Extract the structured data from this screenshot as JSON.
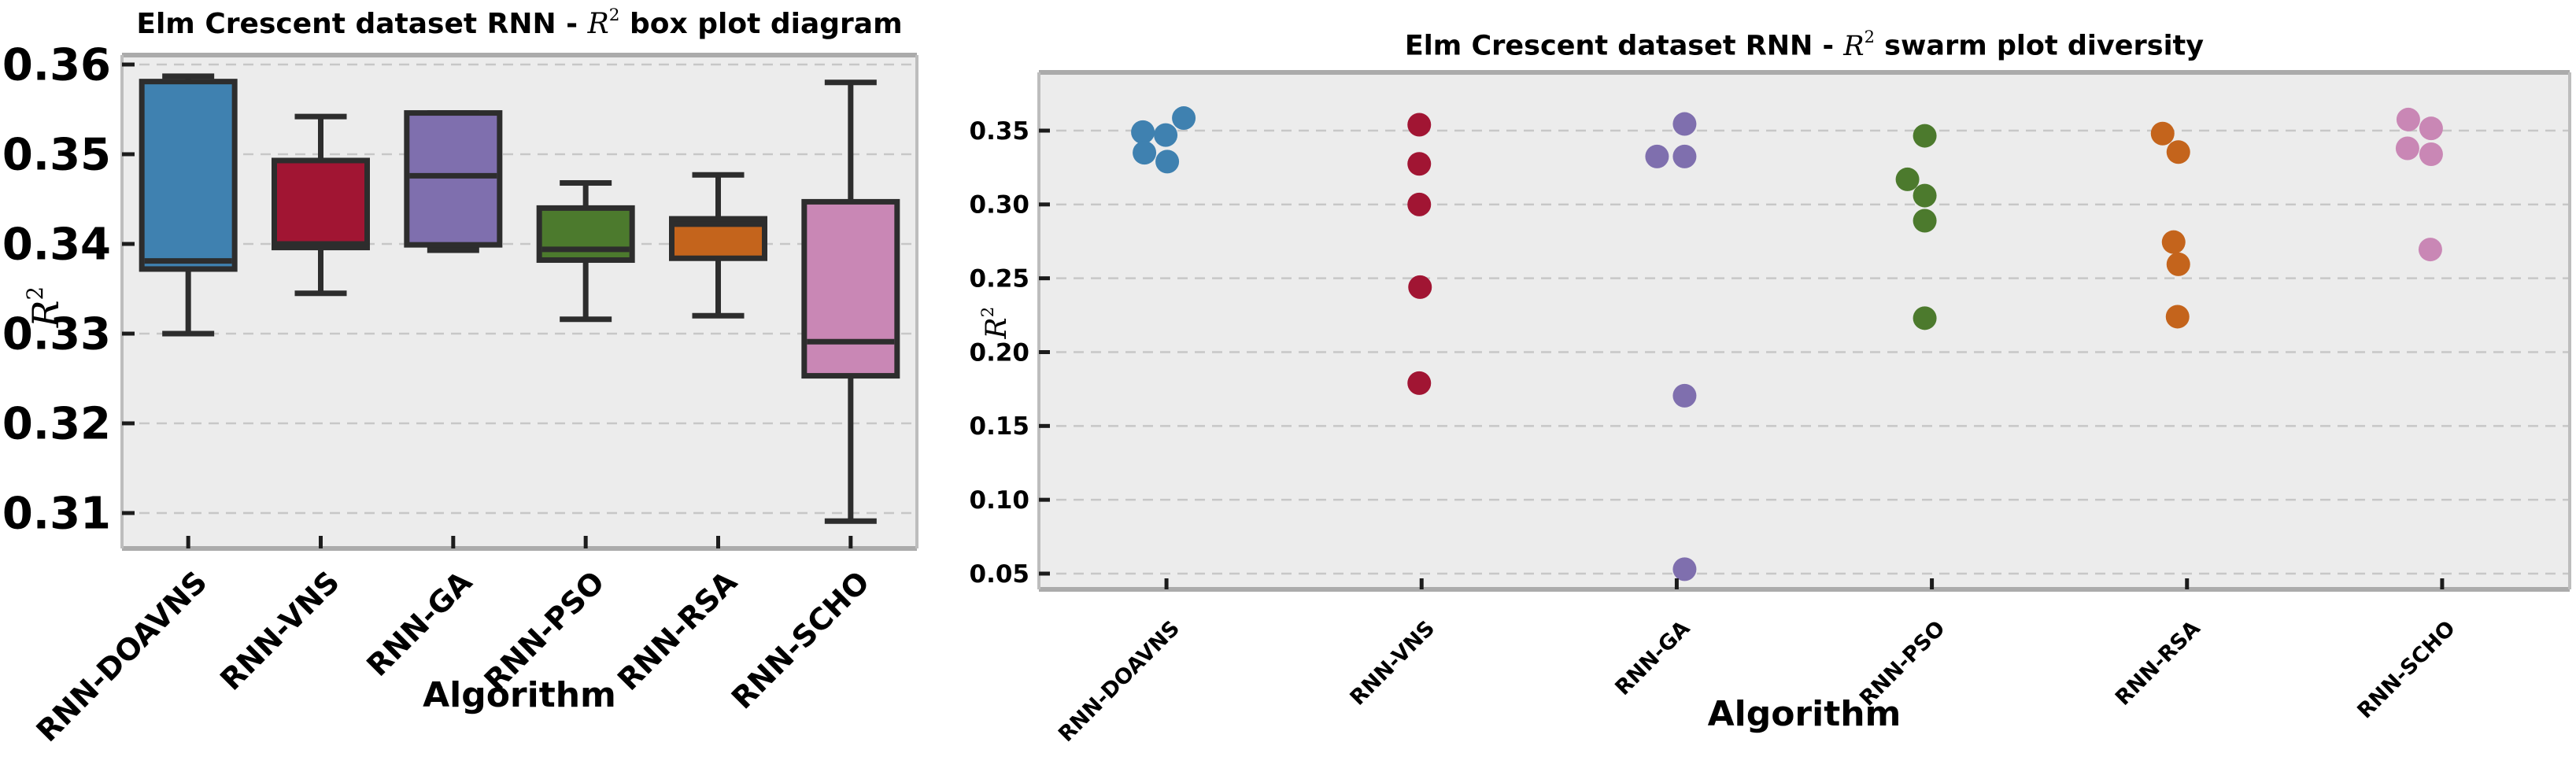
{
  "style": {
    "background": "#ffffff",
    "plot_bg": "#ececec",
    "grid_color": "#c7c7c7",
    "spine_color": "#ababab",
    "side_spine_color": "#bdbdbd",
    "tick_color": "#1c1c1c",
    "text_color": "#000000",
    "box_edge": "#2d2d2d",
    "colors": [
      "#3f81b0",
      "#a11533",
      "#7f6fae",
      "#4c7a2d",
      "#c4641c",
      "#c987b5"
    ]
  },
  "chart_data": [
    {
      "type": "box",
      "title": "Elm Crescent dataset RNN -  R2  box plot diagram",
      "title_parts": {
        "prefix": "Elm Crescent dataset RNN - ",
        "r": "R",
        "exp": "2",
        "suffix": " box plot diagram"
      },
      "xlabel": "Algorithm",
      "ylabel": "R^2",
      "ylabel_parts": {
        "r": "R",
        "exp": "2"
      },
      "categories": [
        "RNN-DOAVNS",
        "RNN-VNS",
        "RNN-GA",
        "RNN-PSO",
        "RNN-RSA",
        "RNN-SCHO"
      ],
      "yticks": [
        0.31,
        0.32,
        0.33,
        0.34,
        0.35,
        0.36
      ],
      "ytick_labels": [
        "0.31",
        "0.32",
        "0.33",
        "0.34",
        "0.35",
        "0.36"
      ],
      "ylim": [
        0.3062,
        0.3609
      ],
      "grid": true,
      "legend": false,
      "stats": [
        {
          "label": "RNN-DOAVNS",
          "whislo": 0.33,
          "q1": 0.3372,
          "med": 0.3381,
          "q3": 0.3581,
          "whishi": 0.3587
        },
        {
          "label": "RNN-VNS",
          "whislo": 0.3345,
          "q1": 0.3396,
          "med": 0.34,
          "q3": 0.3493,
          "whishi": 0.3542
        },
        {
          "label": "RNN-GA",
          "whislo": 0.3393,
          "q1": 0.3399,
          "med": 0.3476,
          "q3": 0.3546,
          "whishi": 0.3546
        },
        {
          "label": "RNN-PSO",
          "whislo": 0.3316,
          "q1": 0.3382,
          "med": 0.3394,
          "q3": 0.344,
          "whishi": 0.3468
        },
        {
          "label": "RNN-RSA",
          "whislo": 0.332,
          "q1": 0.3384,
          "med": 0.3422,
          "q3": 0.3428,
          "whishi": 0.3477
        },
        {
          "label": "RNN-SCHO",
          "whislo": 0.3091,
          "q1": 0.3253,
          "med": 0.3291,
          "q3": 0.3447,
          "whishi": 0.358
        }
      ]
    },
    {
      "type": "scatter",
      "variant": "swarm",
      "title": "Elm Crescent dataset RNN -  R2  swarm plot diversity",
      "title_parts": {
        "prefix": "Elm Crescent dataset RNN - ",
        "r": "R",
        "exp": "2",
        "suffix": " swarm plot diversity"
      },
      "xlabel": "Algorithm",
      "ylabel": "R^2",
      "ylabel_parts": {
        "r": "R",
        "exp": "2"
      },
      "categories": [
        "RNN-DOAVNS",
        "RNN-VNS",
        "RNN-GA",
        "RNN-PSO",
        "RNN-RSA",
        "RNN-SCHO"
      ],
      "yticks": [
        0.05,
        0.1,
        0.15,
        0.2,
        0.25,
        0.3,
        0.35
      ],
      "ytick_labels": [
        "0.05",
        "0.10",
        "0.15",
        "0.20",
        "0.25",
        "0.30",
        "0.35"
      ],
      "ylim": [
        0.039,
        0.389
      ],
      "grid": true,
      "legend": false,
      "series": [
        {
          "name": "RNN-DOAVNS",
          "points": [
            {
              "v": 0.3585,
              "dx": 22
            },
            {
              "v": 0.349,
              "dx": -30
            },
            {
              "v": 0.347,
              "dx": -1
            },
            {
              "v": 0.335,
              "dx": -28
            },
            {
              "v": 0.329,
              "dx": 1
            }
          ]
        },
        {
          "name": "RNN-VNS",
          "points": [
            {
              "v": 0.354,
              "dx": -3
            },
            {
              "v": 0.3275,
              "dx": -3
            },
            {
              "v": 0.3,
              "dx": -3
            },
            {
              "v": 0.244,
              "dx": -2
            },
            {
              "v": 0.179,
              "dx": -3
            }
          ]
        },
        {
          "name": "RNN-GA",
          "points": [
            {
              "v": 0.3545,
              "dx": 10
            },
            {
              "v": 0.3325,
              "dx": -25
            },
            {
              "v": 0.3325,
              "dx": 10
            },
            {
              "v": 0.1705,
              "dx": 10
            },
            {
              "v": 0.053,
              "dx": 10
            }
          ]
        },
        {
          "name": "RNN-PSO",
          "points": [
            {
              "v": 0.3465,
              "dx": -9
            },
            {
              "v": 0.317,
              "dx": -31
            },
            {
              "v": 0.306,
              "dx": -9
            },
            {
              "v": 0.289,
              "dx": -9
            },
            {
              "v": 0.223,
              "dx": -9
            }
          ]
        },
        {
          "name": "RNN-RSA",
          "points": [
            {
              "v": 0.348,
              "dx": -31
            },
            {
              "v": 0.3355,
              "dx": -11
            },
            {
              "v": 0.2745,
              "dx": -17
            },
            {
              "v": 0.2595,
              "dx": -11
            },
            {
              "v": 0.224,
              "dx": -12
            }
          ]
        },
        {
          "name": "RNN-SCHO",
          "points": [
            {
              "v": 0.3575,
              "dx": -43
            },
            {
              "v": 0.3515,
              "dx": -14
            },
            {
              "v": 0.338,
              "dx": -44
            },
            {
              "v": 0.334,
              "dx": -14
            },
            {
              "v": 0.2695,
              "dx": -15
            }
          ]
        }
      ]
    }
  ]
}
